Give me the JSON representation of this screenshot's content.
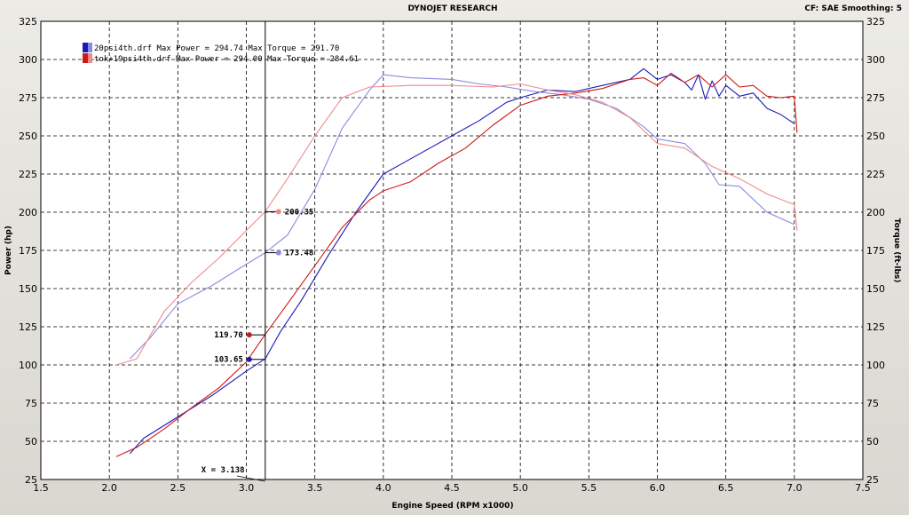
{
  "header": {
    "title": "DYNOJET RESEARCH",
    "settings": "CF: SAE   Smoothing: 5"
  },
  "chart_data": {
    "type": "line",
    "xlabel": "Engine Speed (RPM x1000)",
    "ylabel_left": "Power (hp)",
    "ylabel_right": "Torque (ft-lbs)",
    "xlim": [
      1.5,
      7.5
    ],
    "ylim": [
      25,
      325
    ],
    "xticks": [
      "1.5",
      "2.0",
      "2.5",
      "3.0",
      "3.5",
      "4.0",
      "4.5",
      "5.0",
      "5.5",
      "6.0",
      "6.5",
      "7.0",
      "7.5"
    ],
    "yticks": [
      "25",
      "50",
      "75",
      "100",
      "125",
      "150",
      "175",
      "200",
      "225",
      "250",
      "275",
      "300",
      "325"
    ],
    "grid": true,
    "legend_position": "top-left",
    "series": [
      {
        "name": "20psi4th.drf Max Power = 294.74 Max Torque = 291.70",
        "measure": "power",
        "color": "#1a1ab8",
        "x": [
          2.15,
          2.25,
          2.5,
          2.75,
          3.0,
          3.138,
          3.25,
          3.4,
          3.6,
          3.8,
          4.0,
          4.2,
          4.5,
          4.7,
          4.9,
          5.0,
          5.2,
          5.4,
          5.6,
          5.8,
          5.9,
          6.0,
          6.1,
          6.2,
          6.25,
          6.3,
          6.35,
          6.4,
          6.45,
          6.5,
          6.6,
          6.7,
          6.8,
          6.9,
          7.0
        ],
        "values": [
          42,
          52,
          66,
          80,
          96,
          104,
          122,
          142,
          172,
          200,
          225,
          235,
          250,
          260,
          272,
          275,
          280,
          279,
          283,
          287,
          294,
          287,
          290,
          285,
          280,
          290,
          274,
          286,
          276,
          283,
          276,
          278,
          268,
          264,
          258
        ]
      },
      {
        "name": "20psi4th.drf Max Power = 294.74 Max Torque = 291.70",
        "measure": "torque",
        "color": "#8a8ae0",
        "x": [
          2.15,
          2.3,
          2.5,
          2.75,
          3.0,
          3.138,
          3.3,
          3.5,
          3.7,
          3.9,
          4.0,
          4.2,
          4.5,
          4.7,
          4.9,
          5.1,
          5.3,
          5.5,
          5.7,
          5.9,
          6.0,
          6.2,
          6.35,
          6.45,
          6.6,
          6.8,
          7.0
        ],
        "values": [
          104,
          118,
          140,
          152,
          166,
          173.5,
          185,
          215,
          255,
          280,
          290,
          288,
          287,
          284,
          282,
          279,
          277,
          274,
          268,
          256,
          248,
          245,
          232,
          218,
          217,
          200,
          192
        ]
      },
      {
        "name": "tok+19psi4th.drf Max Power = 294.00 Max Torque = 284.61",
        "measure": "power",
        "color": "#cc1a1a",
        "x": [
          2.05,
          2.2,
          2.4,
          2.6,
          2.8,
          3.0,
          3.138,
          3.3,
          3.5,
          3.7,
          3.9,
          4.0,
          4.2,
          4.4,
          4.6,
          4.8,
          5.0,
          5.2,
          5.4,
          5.6,
          5.8,
          5.9,
          6.0,
          6.1,
          6.2,
          6.3,
          6.4,
          6.5,
          6.6,
          6.7,
          6.8,
          6.9,
          7.0,
          7.02
        ],
        "values": [
          40,
          46,
          58,
          72,
          85,
          102,
          120,
          140,
          165,
          190,
          208,
          214,
          220,
          232,
          242,
          257,
          270,
          276,
          278,
          281,
          287,
          288,
          283,
          291,
          285,
          290,
          282,
          290,
          282,
          283,
          276,
          275,
          276,
          252
        ]
      },
      {
        "name": "tok+19psi4th.drf Max Power = 294.00 Max Torque = 284.61",
        "measure": "torque",
        "color": "#ef8a8a",
        "x": [
          2.05,
          2.2,
          2.4,
          2.6,
          2.8,
          3.0,
          3.138,
          3.3,
          3.5,
          3.7,
          3.9,
          4.2,
          4.5,
          4.8,
          5.0,
          5.2,
          5.4,
          5.6,
          5.8,
          6.0,
          6.2,
          6.4,
          6.6,
          6.8,
          7.0,
          7.02
        ],
        "values": [
          100,
          104,
          135,
          154,
          170,
          188,
          200.4,
          222,
          250,
          275,
          282,
          283,
          283,
          282,
          284,
          280,
          277,
          272,
          262,
          245,
          242,
          230,
          222,
          212,
          205,
          188
        ]
      }
    ],
    "cursor": {
      "x": 3.138,
      "label": "X = 3.138",
      "readouts": [
        {
          "text": "200.35",
          "value": 200.35,
          "color": "#ef8a8a",
          "side": "right"
        },
        {
          "text": "173.48",
          "value": 173.48,
          "color": "#8a8ae0",
          "side": "right"
        },
        {
          "text": "119.70",
          "value": 119.7,
          "color": "#cc1a1a",
          "side": "left"
        },
        {
          "text": "103.65",
          "value": 103.65,
          "color": "#1a1ab8",
          "side": "left"
        }
      ]
    }
  }
}
